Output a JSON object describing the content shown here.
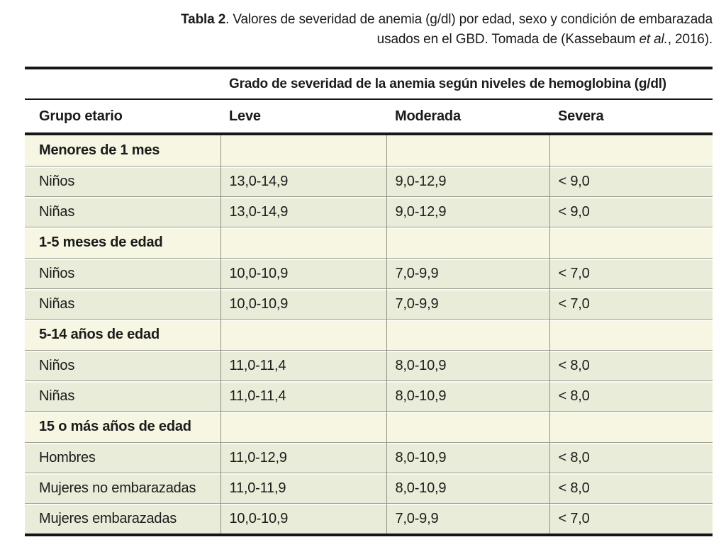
{
  "caption": {
    "line1_bold": "Tabla 2",
    "line1_rest": ". Valores de severidad de anemia (g/dl) por edad, sexo y condición de embarazada",
    "line2_pre": "usados en el GBD. Tomada de (Kassebaum ",
    "line2_italic": "et al.",
    "line2_post": ", 2016)."
  },
  "table": {
    "span_header": "Grado de severidad de la anemia según niveles de hemoglobina (g/dl)",
    "columns": [
      "Grupo etario",
      "Leve",
      "Moderada",
      "Severa"
    ],
    "sections": [
      {
        "group": "Menores de 1 mes",
        "rows": [
          {
            "label": "Niños",
            "leve": "13,0-14,9",
            "moderada": "9,0-12,9",
            "severa": "< 9,0"
          },
          {
            "label": "Niñas",
            "leve": "13,0-14,9",
            "moderada": "9,0-12,9",
            "severa": "< 9,0"
          }
        ]
      },
      {
        "group": "1-5 meses de edad",
        "rows": [
          {
            "label": "Niños",
            "leve": "10,0-10,9",
            "moderada": "7,0-9,9",
            "severa": "< 7,0"
          },
          {
            "label": "Niñas",
            "leve": "10,0-10,9",
            "moderada": "7,0-9,9",
            "severa": "< 7,0"
          }
        ]
      },
      {
        "group": "5-14 años de edad",
        "rows": [
          {
            "label": "Niños",
            "leve": "11,0-11,4",
            "moderada": "8,0-10,9",
            "severa": "< 8,0"
          },
          {
            "label": "Niñas",
            "leve": "11,0-11,4",
            "moderada": "8,0-10,9",
            "severa": "< 8,0"
          }
        ]
      },
      {
        "group": "15 o más años de edad",
        "rows": [
          {
            "label": "Hombres",
            "leve": "11,0-12,9",
            "moderada": "8,0-10,9",
            "severa": "< 8,0"
          },
          {
            "label": "Mujeres no embarazadas",
            "leve": "11,0-11,9",
            "moderada": "8,0-10,9",
            "severa": "< 8,0"
          },
          {
            "label": "Mujeres embarazadas",
            "leve": "10,0-10,9",
            "moderada": "7,0-9,9",
            "severa": "< 7,0"
          }
        ]
      }
    ],
    "colors": {
      "group_row_bg": "#f7f6e3",
      "data_row_bg": "#e9ecd8",
      "rule_dark": "#161616",
      "rule_gray": "#9c9c91",
      "vertical_rule_gray": "#8f8f85",
      "text": "#1b1b1b"
    }
  }
}
